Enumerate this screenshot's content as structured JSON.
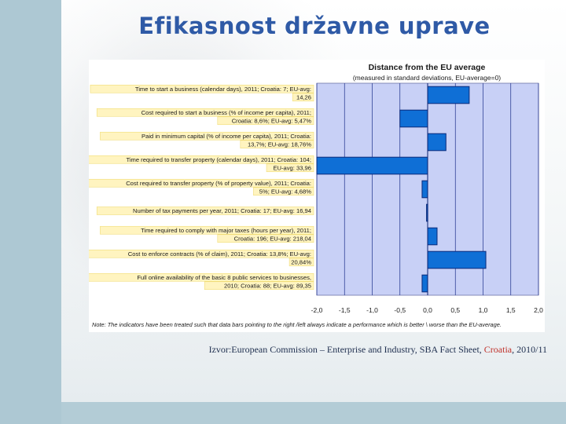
{
  "slide": {
    "title": "Efikasnost državne uprave",
    "source_pre": "Izvor:European Commission – Enterprise and Industry, SBA Fact Sheet, ",
    "source_highlight": "Croatia",
    "source_post": ", 2010/11"
  },
  "colors": {
    "title": "#2f5aa6",
    "plot_bg": "#c8d0f6",
    "bar": "#0f6fd6",
    "bar_border": "#0a2a7a",
    "label_box": "#fff4c0",
    "label_border": "#f0dc78"
  },
  "chart_data": {
    "type": "bar",
    "orientation": "horizontal",
    "title": "Distance from the EU average",
    "subtitle": "(measured in standard deviations, EU-average=0)",
    "xlim": [
      -2.0,
      2.0
    ],
    "xticks": [
      "-2,0",
      "-1,5",
      "-1,0",
      "-0,5",
      "0,0",
      "0,5",
      "1,0",
      "1,5",
      "2,0"
    ],
    "grid": true,
    "categories": [
      [
        "Time to start a business (calendar days), 2011; Croatia: 7; EU-avg:",
        "14,26"
      ],
      [
        "Cost required to start a business (% of income per capita), 2011;",
        "Croatia: 8,6%; EU-avg: 5,47%"
      ],
      [
        "Paid in minimum capital (% of income per capita), 2011; Croatia:",
        "13,7%; EU-avg: 18,76%"
      ],
      [
        "Time required to transfer property (calendar days), 2011; Croatia: 104;",
        "EU-avg: 33,96"
      ],
      [
        "Cost required to transfer property (% of property value), 2011; Croatia:",
        "5%; EU-avg: 4,68%"
      ],
      [
        "Number of tax payments per year, 2011; Croatia: 17; EU-avg: 16,94"
      ],
      [
        "Time required to comply with major taxes (hours per year), 2011;",
        "Croatia: 196; EU-avg: 218,04"
      ],
      [
        "Cost to enforce contracts (% of claim), 2011; Croatia: 13,8%; EU-avg:",
        "20,84%"
      ],
      [
        "Full online availability of the basic 8 public services to businesses,",
        "2010; Croatia: 88; EU-avg: 89,35"
      ]
    ],
    "values": [
      0.75,
      -0.5,
      0.33,
      -2.0,
      -0.1,
      -0.02,
      0.17,
      1.05,
      -0.1
    ],
    "note": "Note: The indicators have been treated such that data bars pointing to the right /left always indicate a performance which is better \\ worse than the EU-average."
  }
}
